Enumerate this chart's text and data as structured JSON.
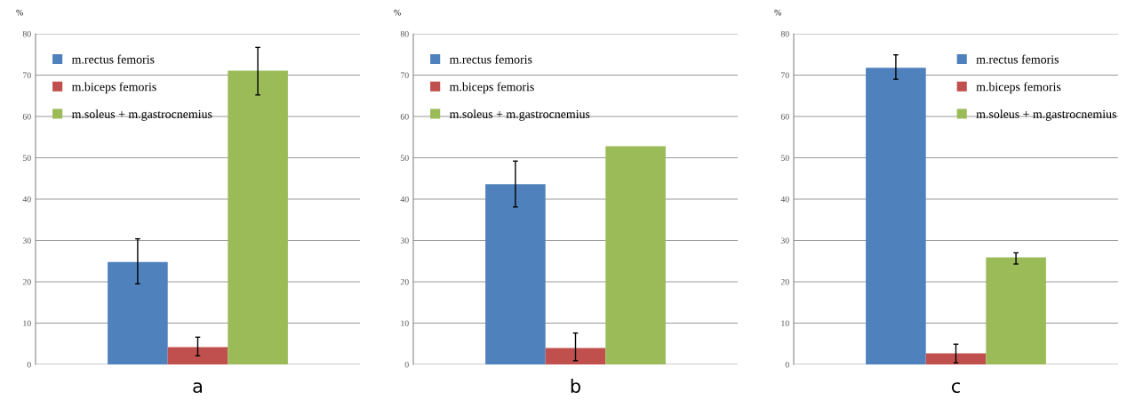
{
  "chart_data": [
    {
      "type": "bar",
      "xlabel": "a",
      "ylabel": "%",
      "categories": [
        null
      ],
      "ylim": [
        0,
        80
      ],
      "yticks": [
        0,
        10,
        20,
        30,
        40,
        50,
        60,
        70,
        80
      ],
      "grid": "y",
      "legend": "top left",
      "series": [
        {
          "name": "m.rectus femoris",
          "color": "#4f81bd",
          "values": [
            24.8
          ],
          "errors": [
            [
              19.5,
              30.4
            ]
          ]
        },
        {
          "name": "m.biceps femoris",
          "color": "#c0504d",
          "values": [
            4.2
          ],
          "errors": [
            [
              2.1,
              6.6
            ]
          ]
        },
        {
          "name": "m.soleus + m.gastrocnemius",
          "color": "#9bbb59",
          "values": [
            71.1
          ],
          "errors": [
            [
              65.2,
              76.7
            ]
          ]
        }
      ]
    },
    {
      "type": "bar",
      "xlabel": "b",
      "ylabel": "%",
      "categories": [
        null
      ],
      "ylim": [
        0,
        80
      ],
      "yticks": [
        0,
        10,
        20,
        30,
        40,
        50,
        60,
        70,
        80
      ],
      "grid": "y",
      "legend": "top left",
      "series": [
        {
          "name": "m.rectus femoris",
          "color": "#4f81bd",
          "values": [
            43.6
          ],
          "errors": [
            [
              38.1,
              49.2
            ]
          ]
        },
        {
          "name": "m.biceps femoris",
          "color": "#c0504d",
          "values": [
            4.0
          ],
          "errors": [
            [
              0.9,
              7.6
            ]
          ]
        },
        {
          "name": "m.soleus + m.gastrocnemius",
          "color": "#9bbb59",
          "values": [
            52.8
          ]
        }
      ]
    },
    {
      "type": "bar",
      "xlabel": "c",
      "ylabel": "%",
      "categories": [
        null
      ],
      "ylim": [
        0,
        80
      ],
      "yticks": [
        0,
        10,
        20,
        30,
        40,
        50,
        60,
        70,
        80
      ],
      "grid": "y",
      "legend": "top right",
      "series": [
        {
          "name": "m.rectus femoris",
          "color": "#4f81bd",
          "values": [
            71.8
          ],
          "errors": [
            [
              69.0,
              74.9
            ]
          ]
        },
        {
          "name": "m.biceps femoris",
          "color": "#c0504d",
          "values": [
            2.7
          ],
          "errors": [
            [
              0.4,
              4.9
            ]
          ]
        },
        {
          "name": "m.soleus + m.gastrocnemius",
          "color": "#9bbb59",
          "values": [
            25.9
          ],
          "errors": [
            [
              24.3,
              27.0
            ]
          ]
        }
      ]
    }
  ]
}
